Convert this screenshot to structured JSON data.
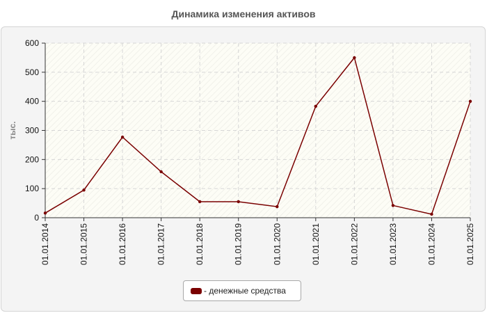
{
  "chart_data": {
    "type": "line",
    "title": "Динамика изменения активов",
    "ylabel": "тыс.",
    "xlabel": "",
    "ylim": [
      0,
      600
    ],
    "yticks": [
      0,
      100,
      200,
      300,
      400,
      500,
      600
    ],
    "grid": true,
    "legend_position": "bottom-center",
    "categories": [
      "01.01.2014",
      "01.01.2015",
      "01.01.2016",
      "01.01.2017",
      "01.01.2018",
      "01.01.2019",
      "01.01.2020",
      "01.01.2021",
      "01.01.2022",
      "01.01.2023",
      "01.01.2024",
      "01.01.2025"
    ],
    "series": [
      {
        "name": "- денежные средства",
        "color": "#7a0000",
        "values": [
          16,
          95,
          277,
          158,
          55,
          55,
          38,
          383,
          550,
          42,
          12,
          400
        ]
      }
    ]
  }
}
